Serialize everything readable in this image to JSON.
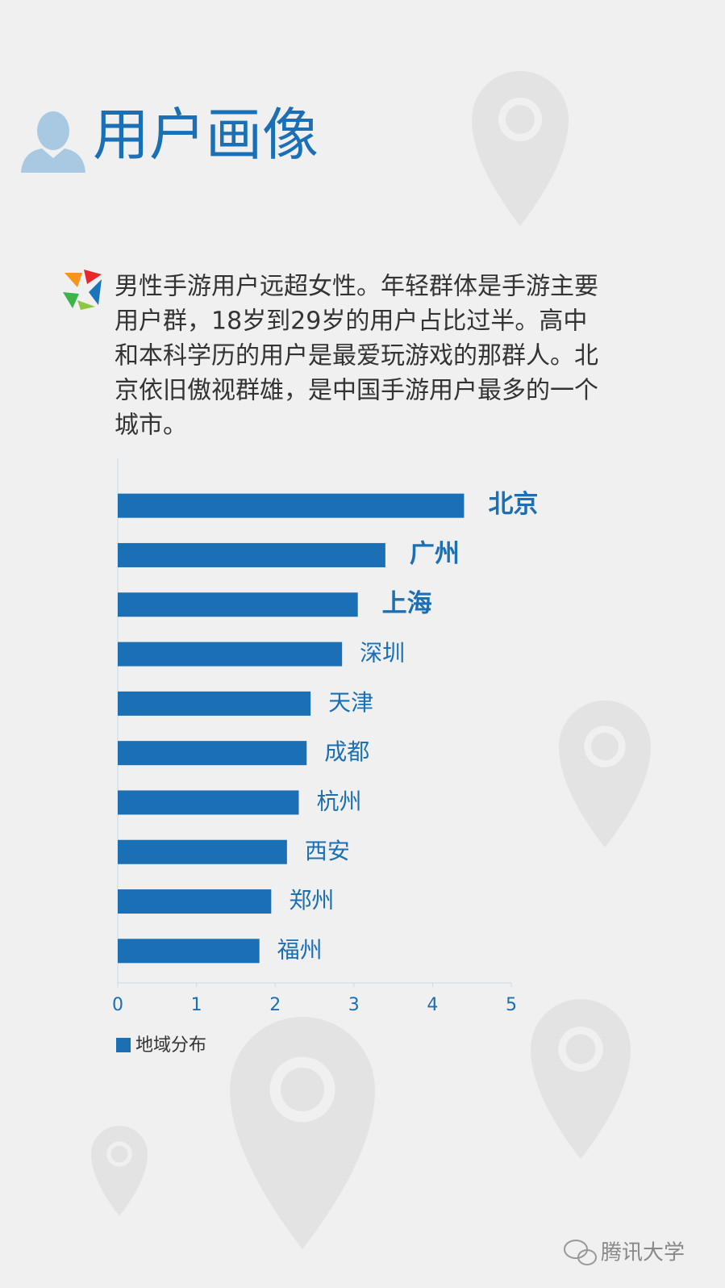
{
  "title": "用户画像",
  "paragraph": [
    "男性手游用户远超女性。年轻群体是手游主要",
    "用户群，18岁到29岁的用户占比过半。高中",
    "和本科学历的用户是最爱玩游戏的那群人。北",
    "京依旧傲视群雄，是中国手游用户最多的一个",
    "城市。"
  ],
  "chart_data": {
    "type": "bar",
    "orientation": "horizontal",
    "categories": [
      "北京",
      "广州",
      "上海",
      "深圳",
      "天津",
      "成都",
      "杭州",
      "西安",
      "郑州",
      "福州"
    ],
    "series": [
      {
        "name": "地域分布",
        "color": "#1a6fb5",
        "values": [
          4.4,
          3.4,
          3.05,
          2.85,
          2.45,
          2.4,
          2.3,
          2.15,
          1.95,
          1.8
        ]
      }
    ],
    "label_bold": [
      true,
      true,
      true,
      false,
      false,
      false,
      false,
      false,
      false,
      false
    ],
    "xlim": [
      0,
      5
    ],
    "xticks": [
      0,
      1,
      2,
      3,
      4,
      5
    ],
    "grid": false,
    "legend": "bottom-left"
  },
  "watermark": "腾讯大学"
}
